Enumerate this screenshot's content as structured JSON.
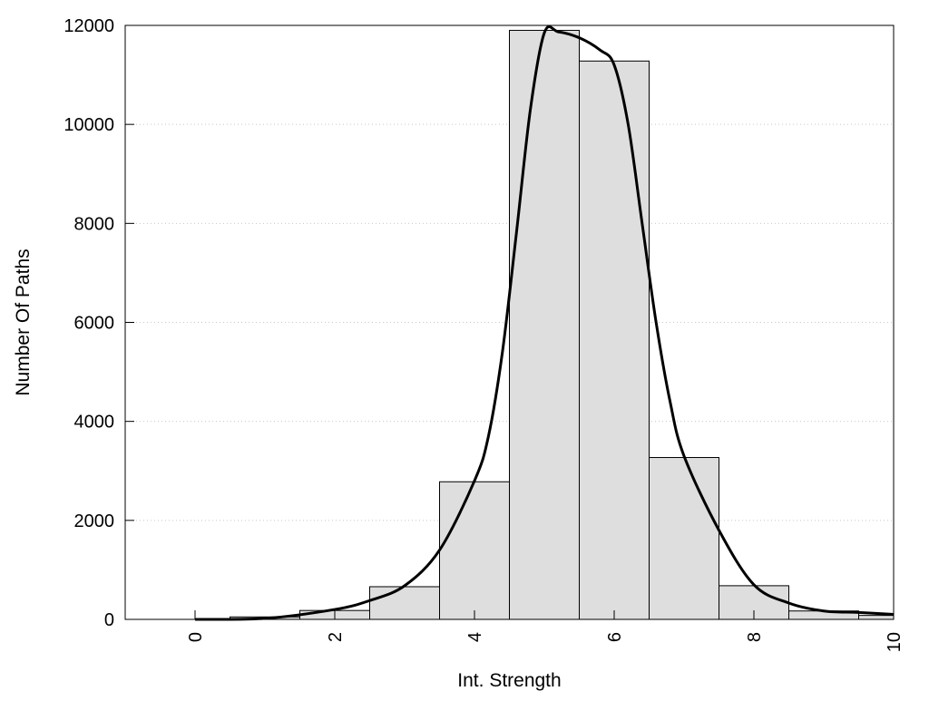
{
  "chart_data": {
    "type": "bar",
    "title": "",
    "xlabel": "Int. Strength",
    "ylabel": "Number Of Paths",
    "xlim": [
      -1,
      10
    ],
    "ylim": [
      0,
      12000
    ],
    "x_ticks": [
      0,
      2,
      4,
      6,
      8,
      10
    ],
    "x_tick_labels": [
      "0",
      "2",
      "4",
      "6",
      "8",
      "10"
    ],
    "y_ticks": [
      0,
      2000,
      4000,
      6000,
      8000,
      10000,
      12000
    ],
    "y_tick_labels": [
      "0",
      "2000",
      "4000",
      "6000",
      "8000",
      "10000",
      "12000"
    ],
    "grid": "horizontal dotted",
    "legend": "none",
    "bar_width": 1,
    "categories": [
      0,
      1,
      2,
      3,
      4,
      5,
      6,
      7,
      8,
      9,
      10
    ],
    "values": [
      0,
      50,
      180,
      660,
      2780,
      11900,
      11280,
      3270,
      680,
      170,
      80
    ],
    "bar_fill_color": "#dedede",
    "bar_edge_color": "#000000",
    "fit_curve": {
      "x": [
        0,
        1,
        2,
        2.5,
        3,
        3.5,
        4,
        4.2,
        4.4,
        4.6,
        4.8,
        5,
        5.2,
        5.5,
        5.8,
        6,
        6.2,
        6.4,
        6.6,
        6.8,
        7,
        7.5,
        8,
        8.5,
        9,
        9.5,
        10
      ],
      "y": [
        0,
        20,
        200,
        380,
        680,
        1400,
        2800,
        3700,
        5400,
        7800,
        10300,
        11850,
        11870,
        11750,
        11500,
        11200,
        10000,
        8000,
        6000,
        4400,
        3300,
        1800,
        700,
        330,
        170,
        140,
        100
      ],
      "color": "#000000"
    }
  }
}
